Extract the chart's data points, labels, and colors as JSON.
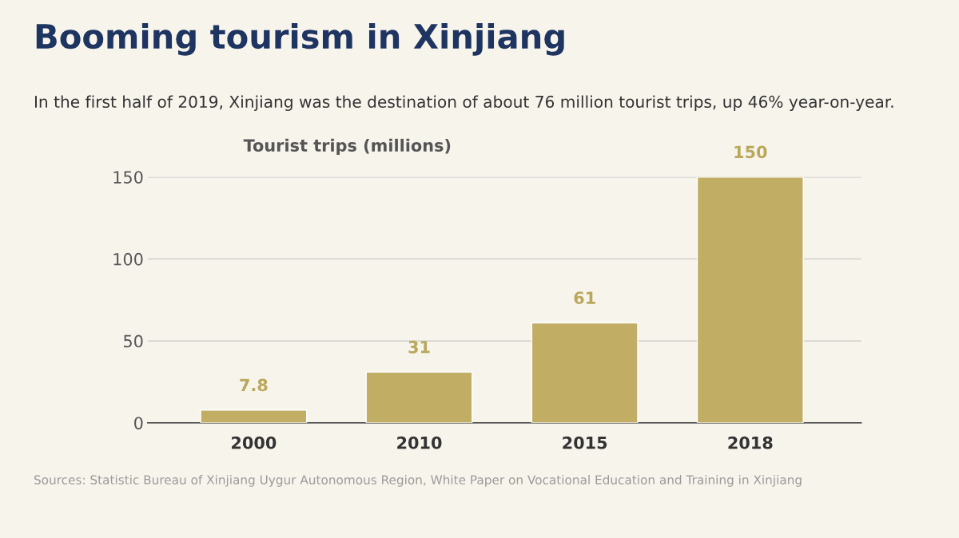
{
  "chart_data": {
    "type": "bar",
    "title": "Booming tourism in Xinjiang",
    "subtitle": "In the first half of 2019, Xinjiang was the destination of about 76 million tourist trips, up 46% year-on-year.",
    "ylabel": "Tourist trips (millions)",
    "categories": [
      "2000",
      "2010",
      "2015",
      "2018"
    ],
    "values": [
      7.8,
      31,
      61,
      150
    ],
    "color": "#c1ad63",
    "ylim": [
      0,
      150
    ],
    "yticks": [
      0,
      50,
      100,
      150
    ],
    "grid": "y",
    "data_labels": true,
    "annotations": [
      "Sources: Statistic Bureau of Xinjiang Uygur Autonomous Region, White Paper on Vocational Education and Training in Xinjiang"
    ]
  }
}
